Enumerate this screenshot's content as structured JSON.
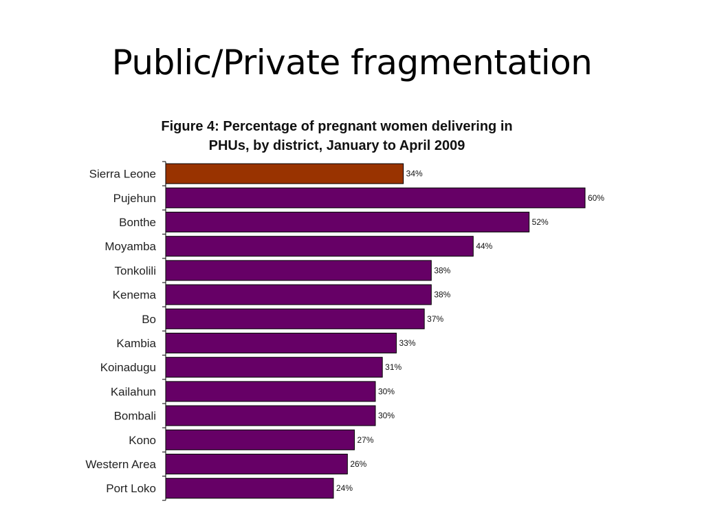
{
  "slide": {
    "title": "Public/Private fragmentation"
  },
  "chart_data": {
    "type": "bar",
    "orientation": "horizontal",
    "title_line1": "Figure 4: Percentage of pregnant women delivering in",
    "title_line2": "PHUs, by district, January to April 2009",
    "xlabel": "",
    "ylabel": "",
    "grid": false,
    "legend": "none",
    "categories": [
      "Sierra Leone",
      "Pujehun",
      "Bonthe",
      "Moyamba",
      "Tonkolili",
      "Kenema",
      "Bo",
      "Kambia",
      "Koinadugu",
      "Kailahun",
      "Bombali",
      "Kono",
      "Western Area",
      "Port Loko"
    ],
    "values": [
      34,
      60,
      52,
      44,
      38,
      38,
      37,
      33,
      31,
      30,
      30,
      27,
      26,
      24
    ],
    "value_labels": [
      "34%",
      "60%",
      "52%",
      "44%",
      "38%",
      "38%",
      "37%",
      "33%",
      "31%",
      "30%",
      "30%",
      "27%",
      "26%",
      "24%"
    ],
    "colors": [
      "#993300",
      "#660066",
      "#660066",
      "#660066",
      "#660066",
      "#660066",
      "#660066",
      "#660066",
      "#660066",
      "#660066",
      "#660066",
      "#660066",
      "#660066",
      "#660066"
    ],
    "xlim": [
      0,
      60
    ]
  }
}
